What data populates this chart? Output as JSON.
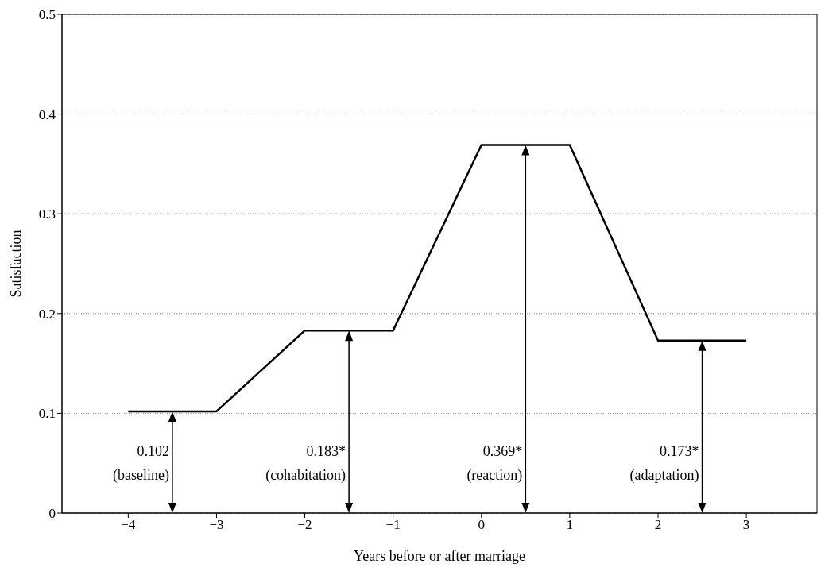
{
  "chart_data": {
    "type": "line",
    "xlabel": "Years before or after marriage",
    "ylabel": "Satisfaction",
    "x": [
      -4,
      -3,
      -2,
      -1,
      0,
      1,
      2,
      3
    ],
    "series": [
      {
        "color": "#000000",
        "values": [
          0.102,
          0.102,
          0.183,
          0.183,
          0.369,
          0.369,
          0.173,
          0.173
        ]
      }
    ],
    "xlim": [
      -4.75,
      3.8
    ],
    "xticks": [
      -4,
      -3,
      -2,
      -1,
      0,
      1,
      2,
      3
    ],
    "ylim": [
      0,
      0.5
    ],
    "yticks": [
      0,
      0.1,
      0.2,
      0.3,
      0.4,
      0.5
    ],
    "grid": "y",
    "marker": "none",
    "line_style": "solid",
    "annotations": [
      "0.102\n(baseline)",
      "0.183*\n(cohabitation)",
      "0.369*\n(reaction)",
      "0.173*\n(adaptation)"
    ]
  }
}
